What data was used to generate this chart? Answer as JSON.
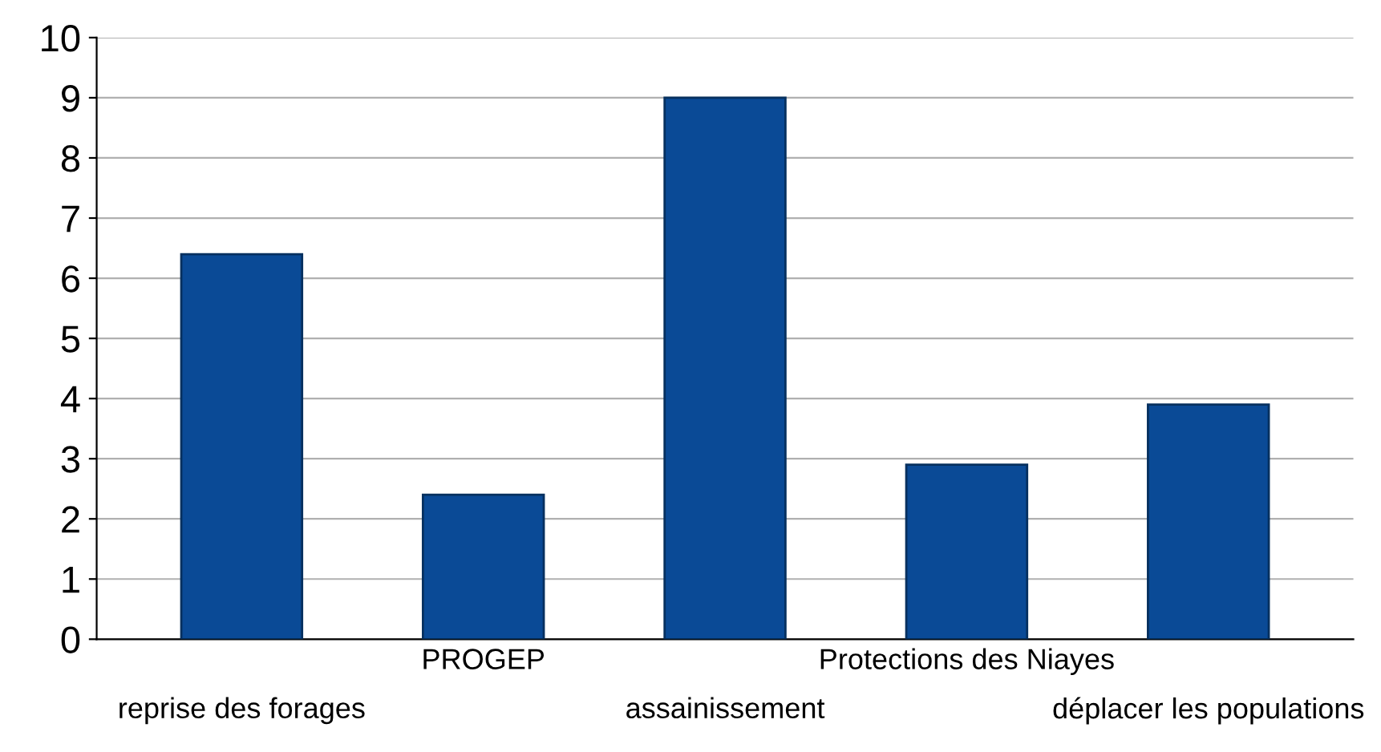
{
  "chart_data": {
    "type": "bar",
    "categories": [
      "reprise des forages",
      "PROGEP",
      "assainissement",
      "Protections des Niayes",
      "déplacer les populations"
    ],
    "values": [
      6.4,
      2.4,
      9.0,
      2.9,
      3.9
    ],
    "color": "#0a4a96",
    "ylim": [
      0,
      10
    ],
    "yticks": [
      0,
      1,
      2,
      3,
      4,
      5,
      6,
      7,
      8,
      9,
      10
    ],
    "grid": "y",
    "legend": false
  }
}
